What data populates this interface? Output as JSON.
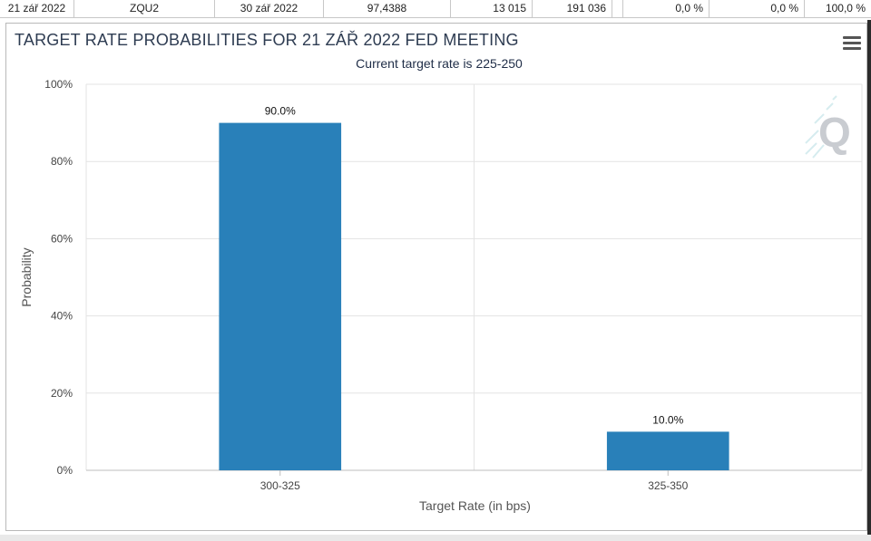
{
  "table_row": [
    "21 zář 2022",
    "ZQU2",
    "30 zář 2022",
    "97,4388",
    "13 015",
    "191 036",
    "0,0 %",
    "0,0 %",
    "100,0 %"
  ],
  "menu": {
    "icon": "hamburger-menu-icon"
  },
  "logo": {
    "icon": "q-logo-icon",
    "letter": "Q"
  },
  "colors": {
    "bar": "#2980b9",
    "grid": "#e3e3e3",
    "axis": "#bdbdbd"
  },
  "chart_data": {
    "type": "bar",
    "title": "TARGET RATE PROBABILITIES FOR 21 ZÁŘ 2022 FED MEETING",
    "subtitle": "Current target rate is 225-250",
    "xlabel": "Target Rate (in bps)",
    "ylabel": "Probability",
    "categories": [
      "300-325",
      "325-350"
    ],
    "values": [
      90.0,
      10.0
    ],
    "data_labels": [
      "90.0%",
      "10.0%"
    ],
    "ylim": [
      0,
      100
    ],
    "y_ticks": [
      0,
      20,
      40,
      60,
      80,
      100
    ],
    "y_tick_labels": [
      "0%",
      "20%",
      "40%",
      "60%",
      "80%",
      "100%"
    ],
    "grid": true,
    "legend": false
  }
}
